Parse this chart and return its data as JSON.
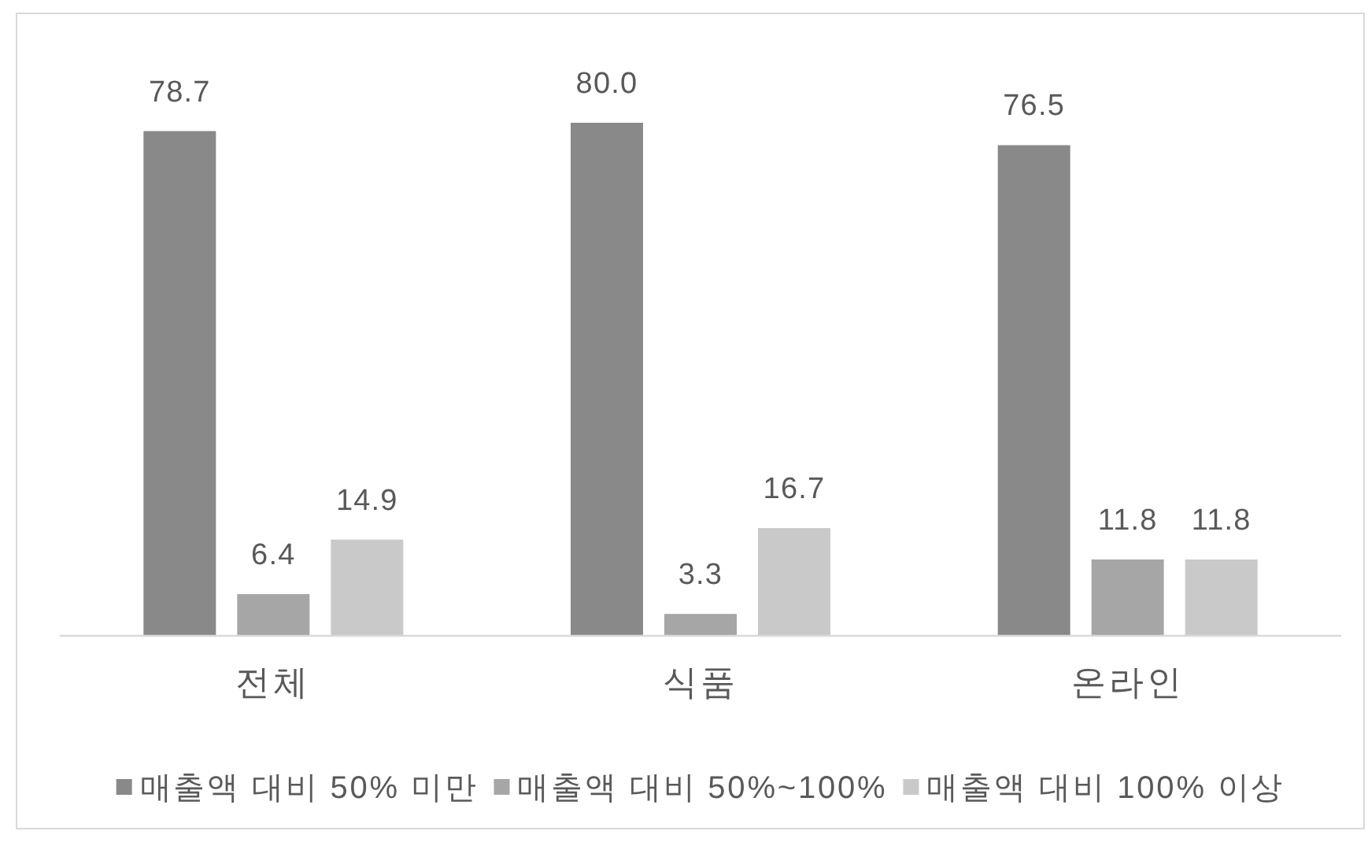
{
  "chart_data": {
    "type": "bar",
    "categories": [
      "전체",
      "식품",
      "온라인"
    ],
    "series": [
      {
        "name": "매출액 대비 50% 미만",
        "color": "#898989",
        "values": [
          78.7,
          80.0,
          76.5
        ],
        "value_labels": [
          "78.7",
          "80.0",
          "76.5"
        ]
      },
      {
        "name": "매출액 대비 50%~100%",
        "color": "#a6a6a6",
        "values": [
          6.4,
          3.3,
          11.8
        ],
        "value_labels": [
          "6.4",
          "3.3",
          "11.8"
        ]
      },
      {
        "name": "매출액 대비 100% 이상",
        "color": "#c9c9c9",
        "values": [
          14.9,
          16.7,
          11.8
        ],
        "value_labels": [
          "14.9",
          "16.7",
          "11.8"
        ]
      }
    ],
    "legend": "bottom"
  }
}
